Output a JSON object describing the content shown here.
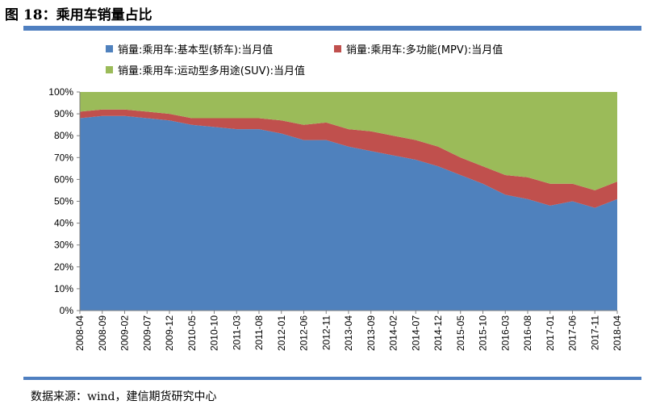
{
  "figure": {
    "title": "图 18：乘用车销量占比",
    "source": "数据来源：wind，建信期货研究中心"
  },
  "chart_data": {
    "type": "area",
    "stacked": true,
    "title": "乘用车销量占比",
    "ylim": [
      0,
      100
    ],
    "yticks": [
      0,
      10,
      20,
      30,
      40,
      50,
      60,
      70,
      80,
      90,
      100
    ],
    "ytick_labels": [
      "0%",
      "10%",
      "20%",
      "30%",
      "40%",
      "50%",
      "60%",
      "70%",
      "80%",
      "90%",
      "100%"
    ],
    "xtick_labels": [
      "2008-04",
      "2008-09",
      "2009-02",
      "2009-07",
      "2009-12",
      "2010-05",
      "2010-10",
      "2011-03",
      "2011-08",
      "2012-01",
      "2012-06",
      "2012-11",
      "2013-04",
      "2013-09",
      "2014-02",
      "2014-07",
      "2014-12",
      "2015-05",
      "2015-10",
      "2016-03",
      "2016-08",
      "2017-01",
      "2017-06",
      "2017-11",
      "2018-04"
    ],
    "legend_position": "top",
    "series": [
      {
        "name": "销量:乘用车:基本型(轿车):当月值",
        "color": "#4f81bd",
        "values": [
          88,
          89,
          89,
          88,
          87,
          85,
          84,
          83,
          83,
          81,
          78,
          78,
          75,
          73,
          71,
          69,
          66,
          62,
          58,
          53,
          51,
          48,
          50,
          47,
          51
        ]
      },
      {
        "name": "销量:乘用车:多功能(MPV):当月值",
        "color": "#c0504d",
        "values": [
          3,
          3,
          3,
          3,
          3,
          3,
          4,
          5,
          5,
          6,
          7,
          8,
          8,
          9,
          9,
          9,
          9,
          8,
          8,
          9,
          10,
          10,
          8,
          8,
          8
        ]
      },
      {
        "name": "销量:乘用车:运动型多用途(SUV):当月值",
        "color": "#9bbb59",
        "values": [
          9,
          8,
          8,
          9,
          10,
          12,
          12,
          12,
          12,
          13,
          15,
          14,
          17,
          18,
          20,
          22,
          25,
          30,
          34,
          38,
          39,
          42,
          42,
          45,
          41
        ]
      }
    ]
  }
}
